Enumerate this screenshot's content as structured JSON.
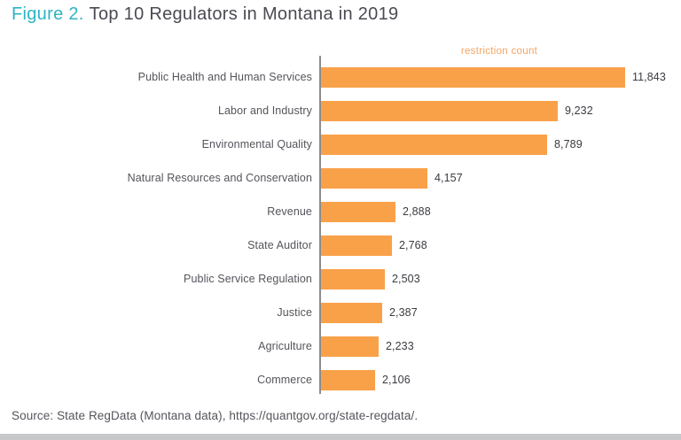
{
  "figure": {
    "label": "Figure 2.",
    "title": "Top 10 Regulators in Montana in 2019"
  },
  "chart_data": {
    "type": "bar",
    "orientation": "horizontal",
    "title": "Top 10 Regulators in Montana in 2019",
    "value_axis_label": "restriction count",
    "categories": [
      "Public Health and Human Services",
      "Labor and Industry",
      "Environmental Quality",
      "Natural Resources and Conservation",
      "Revenue",
      "State Auditor",
      "Public Service Regulation",
      "Justice",
      "Agriculture",
      "Commerce"
    ],
    "values": [
      11843,
      9232,
      8789,
      4157,
      2888,
      2768,
      2503,
      2387,
      2233,
      2106
    ],
    "value_labels": [
      "11,843",
      "9,232",
      "8,789",
      "4,157",
      "2,888",
      "2,768",
      "2,503",
      "2,387",
      "2,233",
      "2,106"
    ],
    "xlim": [
      0,
      11843
    ],
    "grid": false,
    "legend_position": "top-center",
    "bar_color": "#F9A149",
    "axis_label_color": "#F5A463"
  },
  "source": {
    "text": "Source: State RegData (Montana data), https://quantgov.org/state-regdata/."
  },
  "colors": {
    "figure_label": "#2EB3C4",
    "title_text": "#4A4B52",
    "category_text": "#54555B",
    "value_text": "#3A3B40",
    "axis_line": "#8C8C8C",
    "bottom_bar": "#C6C8C9",
    "background": "#FFFFFF"
  }
}
